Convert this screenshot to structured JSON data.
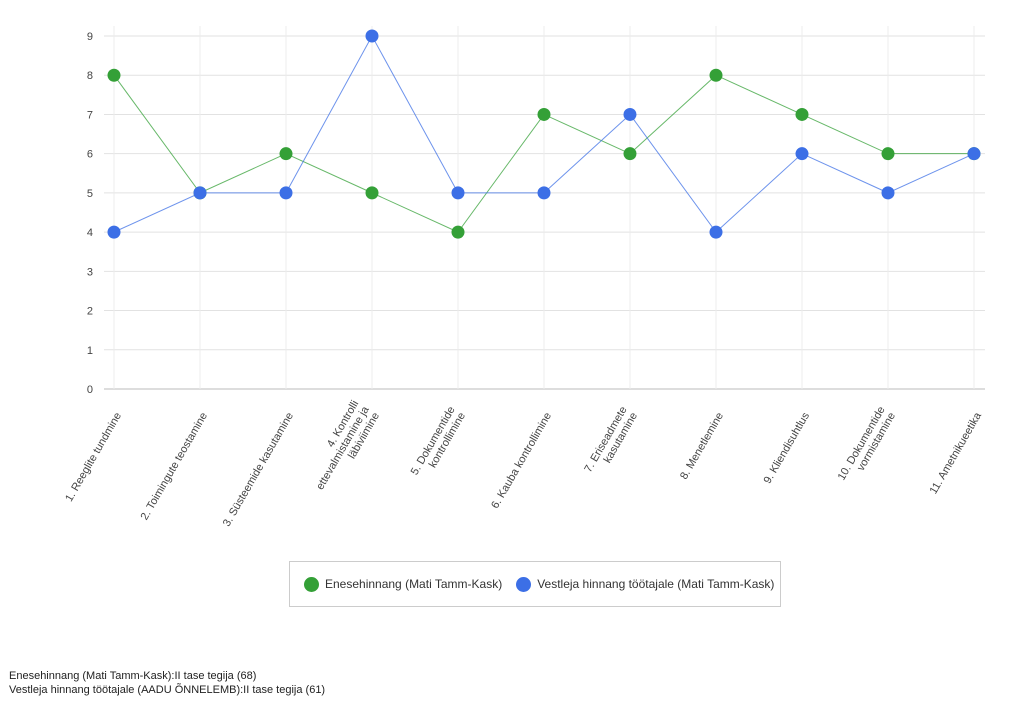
{
  "chart_data": {
    "type": "line",
    "categories": [
      [
        "1. Reeglite tundmine"
      ],
      [
        "2. Toimingute teostamine"
      ],
      [
        "3. Süsteemide kasutamine"
      ],
      [
        "4. Kontrolli",
        "ettevalmistamine ja",
        "läbiviimine"
      ],
      [
        "5. Dokumentide",
        "kontrollimine"
      ],
      [
        "6. Kauba kontrollimine"
      ],
      [
        "7. Eriseadmete",
        "kasutamine"
      ],
      [
        "8. Menetlemine"
      ],
      [
        "9. Kliendisuhtlus"
      ],
      [
        "10. Dokumentide",
        "vormistamine"
      ],
      [
        "11. Ametnikueetika"
      ]
    ],
    "series": [
      {
        "name": "Enesehinnang (Mati Tamm-Kask)",
        "color": "#34a037",
        "values": [
          8,
          5,
          6,
          5,
          4,
          7,
          6,
          8,
          7,
          6,
          6
        ]
      },
      {
        "name": "Vestleja hinnang töötajale (Mati Tamm-Kask)",
        "color": "#3c6fe6",
        "values": [
          4,
          5,
          5,
          9,
          5,
          5,
          7,
          4,
          6,
          5,
          6
        ]
      }
    ],
    "ylim": [
      0,
      9
    ],
    "yticks": [
      0,
      1,
      2,
      3,
      4,
      5,
      6,
      7,
      8,
      9
    ],
    "grid": true,
    "legend_position": "bottom"
  },
  "footer": {
    "line1": "Enesehinnang (Mati Tamm-Kask):II tase tegija (68)",
    "line2": "Vestleja hinnang töötajale (AADU ÕNNELEMB):II tase tegija (61)"
  }
}
